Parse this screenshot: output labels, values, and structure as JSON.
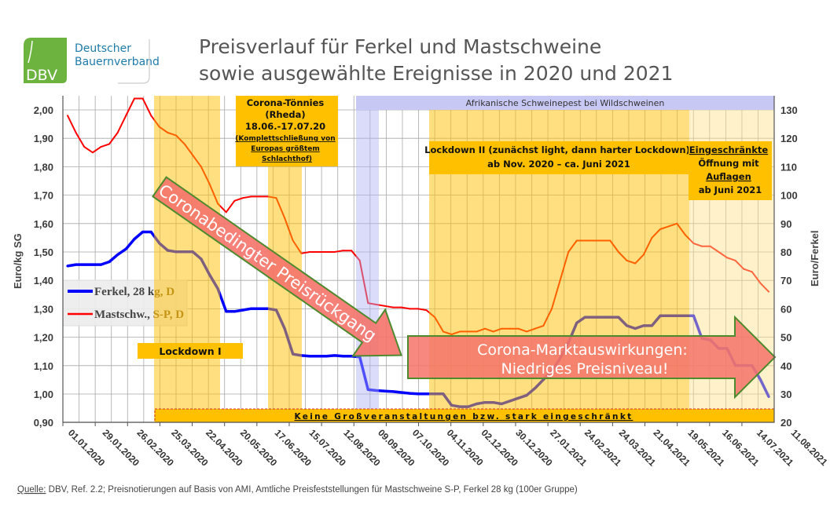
{
  "logo": {
    "mark": "DBV",
    "line1": "Deutscher",
    "line2": "Bauernverband",
    "color": "#6DB33F",
    "text_color": "#1F7BA8"
  },
  "title": {
    "line1": "Preisverlauf für Ferkel und Mastschweine",
    "line2": "sowie ausgewählte Ereignisse in 2020 und 2021"
  },
  "chart_data": {
    "type": "line",
    "x_unit": "weeks since 01.01.2020",
    "x_labels": [
      "01.01.2020",
      "29.01.2020",
      "26.02.2020",
      "25.03.2020",
      "22.04.2020",
      "20.05.2020",
      "17.06.2020",
      "15.07.2020",
      "12.08.2020",
      "09.09.2020",
      "07.10.2020",
      "04.11.2020",
      "02.12.2020",
      "30.12.2020",
      "27.01.2021",
      "24.02.2021",
      "24.03.2021",
      "21.04.2021",
      "19.05.2021",
      "16.06.2021",
      "14.07.2021",
      "11.08.2021"
    ],
    "ylabel_left": "Euro/kg SG",
    "ylabel_right": "Euro/Ferkel",
    "ylim_left": [
      0.9,
      2.05
    ],
    "ylim_right": [
      20,
      135
    ],
    "yticks_left": [
      "2,00",
      "1,90",
      "1,80",
      "1,70",
      "1,60",
      "1,50",
      "1,40",
      "1,30",
      "1,20",
      "1,10",
      "1,00",
      "0,90"
    ],
    "yticks_right": [
      "130",
      "120",
      "110",
      "100",
      "90",
      "80",
      "70",
      "60",
      "50",
      "40",
      "30",
      "20"
    ],
    "grid": true,
    "legend_position": "left-middle",
    "series": [
      {
        "name": "Ferkel, 28 kg, D",
        "legend_main": "Ferkel, 28 k",
        "legend_tail": "g, D",
        "axis": "right",
        "color": "#0000FF",
        "values": [
          75,
          75.5,
          75.5,
          75.5,
          75.5,
          76.5,
          79,
          81,
          84.5,
          87,
          87,
          83,
          80.5,
          80,
          80,
          80,
          77.5,
          72,
          67,
          59,
          59,
          59.5,
          60,
          60,
          60,
          59.5,
          53,
          44,
          43.5,
          43.3,
          43.3,
          43.3,
          43.5,
          43.3,
          43.3,
          43,
          31.5,
          31.2,
          31,
          30.8,
          30.5,
          30.2,
          30,
          30,
          30,
          30,
          26,
          25.5,
          25.5,
          26.5,
          27,
          27,
          26.5,
          27.5,
          28.5,
          29.5,
          32,
          35,
          38,
          42.5,
          48,
          55,
          57,
          57,
          57,
          57,
          57,
          54,
          53,
          54,
          54,
          57.5,
          57.5,
          57.5,
          57.5,
          57.5,
          49.5,
          49,
          46,
          46,
          40,
          40,
          40,
          35,
          29
        ]
      },
      {
        "name": "Mastschw., S-P, D",
        "legend_main": "Mastschw., ",
        "legend_tail": "S-P, D",
        "axis": "left",
        "color": "#FF0000",
        "values": [
          1.98,
          1.92,
          1.87,
          1.85,
          1.87,
          1.88,
          1.92,
          1.98,
          2.04,
          2.04,
          1.98,
          1.94,
          1.92,
          1.91,
          1.88,
          1.84,
          1.8,
          1.74,
          1.67,
          1.64,
          1.68,
          1.69,
          1.695,
          1.695,
          1.695,
          1.69,
          1.62,
          1.54,
          1.495,
          1.5,
          1.5,
          1.5,
          1.5,
          1.505,
          1.505,
          1.47,
          1.32,
          1.315,
          1.31,
          1.305,
          1.305,
          1.3,
          1.3,
          1.295,
          1.27,
          1.22,
          1.21,
          1.22,
          1.22,
          1.22,
          1.23,
          1.22,
          1.23,
          1.23,
          1.23,
          1.22,
          1.23,
          1.24,
          1.3,
          1.4,
          1.5,
          1.54,
          1.54,
          1.54,
          1.54,
          1.54,
          1.5,
          1.47,
          1.46,
          1.49,
          1.55,
          1.58,
          1.59,
          1.6,
          1.56,
          1.53,
          1.52,
          1.52,
          1.5,
          1.48,
          1.47,
          1.44,
          1.43,
          1.39,
          1.36
        ]
      }
    ]
  },
  "annotations": {
    "asp": "Afrikanische Schweinepest bei Wildschweinen",
    "lockdown1": "Lockdown I",
    "toennies": [
      "Corona-Tönnies",
      "(Rheda)",
      "18.06.-17.07.20",
      "(Komplettschließung von",
      "Europas größtem",
      "Schlachthof)"
    ],
    "lockdown2": [
      "Lockdown II (zunächst light, dann harter Lockdown)",
      "ab Nov. 2020 – ca. Juni 2021"
    ],
    "opening": [
      "Eingeschränkte",
      "Öffnung mit",
      "Auflagen",
      "ab Juni 2021"
    ],
    "events_banner": "Keine Großveranstaltungen bzw. stark eingeschränkt",
    "arrow_decline": "Coronabedingter Preisrückgang",
    "arrow_market": [
      "Corona-Marktauswirkungen:",
      "Niedriges Preisniveau!"
    ],
    "band_color": "#FFC000",
    "asp_color": "#C8C8F5",
    "arrow_color": "#F4736A",
    "arrow_border": "#4E8A2E"
  },
  "source": {
    "label": "Quelle:",
    "text": " DBV, Ref. 2.2; Preisnotierungen auf Basis von AMI, Amtliche Preisfeststellungen für Mastschweine S-P, Ferkel 28 kg (100er Gruppe)"
  }
}
